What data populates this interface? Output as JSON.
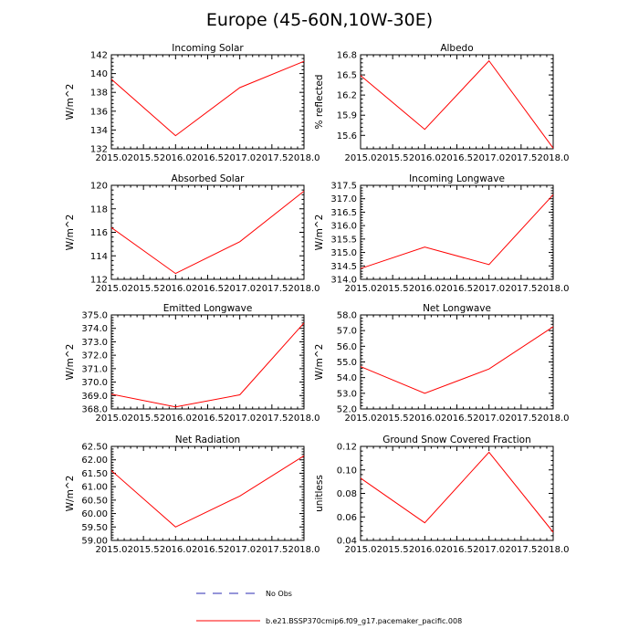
{
  "title": "Europe (45-60N,10W-30E)",
  "colors": {
    "series": "#ff0000",
    "obs": "#2b2bb3",
    "axis": "#000000"
  },
  "legend": [
    {
      "label": "No Obs",
      "style": "dashed",
      "color": "#2b2bb3"
    },
    {
      "label": "b.e21.BSSP370cmip6.f09_g17.pacemaker_pacific.008",
      "style": "solid",
      "color": "#ff0000"
    }
  ],
  "chart_data": [
    {
      "type": "line",
      "title": "Incoming Solar",
      "ylabel": "W/m^2",
      "x": [
        2015,
        2016,
        2017,
        2018
      ],
      "xlim": [
        2015,
        2018
      ],
      "xticks": [
        "2015.0",
        "2015.5",
        "2016.0",
        "2016.5",
        "2017.0",
        "2017.5",
        "2018.0"
      ],
      "ylim": [
        132,
        142
      ],
      "yticks": [
        "132",
        "134",
        "136",
        "138",
        "140",
        "142"
      ],
      "series": [
        {
          "values": [
            139.4,
            133.4,
            138.5,
            141.3
          ]
        }
      ]
    },
    {
      "type": "line",
      "title": "Albedo",
      "ylabel": "% reflected",
      "x": [
        2015,
        2016,
        2017,
        2018
      ],
      "xlim": [
        2015,
        2018
      ],
      "xticks": [
        "2015.0",
        "2015.5",
        "2016.0",
        "2016.5",
        "2017.0",
        "2017.5",
        "2018.0"
      ],
      "ylim": [
        15.4,
        16.8
      ],
      "yticks": [
        "15.6",
        "15.9",
        "16.2",
        "16.5",
        "16.8"
      ],
      "series": [
        {
          "values": [
            16.49,
            15.69,
            16.71,
            15.41
          ]
        }
      ]
    },
    {
      "type": "line",
      "title": "Absorbed Solar",
      "ylabel": "W/m^2",
      "x": [
        2015,
        2016,
        2017,
        2018
      ],
      "xlim": [
        2015,
        2018
      ],
      "xticks": [
        "2015.0",
        "2015.5",
        "2016.0",
        "2016.5",
        "2017.0",
        "2017.5",
        "2018.0"
      ],
      "ylim": [
        112,
        120
      ],
      "yticks": [
        "112",
        "114",
        "116",
        "118",
        "120"
      ],
      "series": [
        {
          "values": [
            116.4,
            112.5,
            115.2,
            119.5
          ]
        }
      ]
    },
    {
      "type": "line",
      "title": "Incoming Longwave",
      "ylabel": "W/m^2",
      "x": [
        2015,
        2016,
        2017,
        2018
      ],
      "xlim": [
        2015,
        2018
      ],
      "xticks": [
        "2015.0",
        "2015.5",
        "2016.0",
        "2016.5",
        "2017.0",
        "2017.5",
        "2018.0"
      ],
      "ylim": [
        314.0,
        317.5
      ],
      "yticks": [
        "314.0",
        "314.5",
        "315.0",
        "315.5",
        "316.0",
        "316.5",
        "317.0",
        "317.5"
      ],
      "series": [
        {
          "values": [
            314.4,
            315.2,
            314.55,
            317.15
          ]
        }
      ]
    },
    {
      "type": "line",
      "title": "Emitted Longwave",
      "ylabel": "W/m^2",
      "x": [
        2015,
        2016,
        2017,
        2018
      ],
      "xlim": [
        2015,
        2018
      ],
      "xticks": [
        "2015.0",
        "2015.5",
        "2016.0",
        "2016.5",
        "2017.0",
        "2017.5",
        "2018.0"
      ],
      "ylim": [
        368.0,
        375.0
      ],
      "yticks": [
        "368.0",
        "369.0",
        "370.0",
        "371.0",
        "372.0",
        "373.0",
        "374.0",
        "375.0"
      ],
      "series": [
        {
          "values": [
            369.1,
            368.15,
            369.05,
            374.4
          ]
        }
      ]
    },
    {
      "type": "line",
      "title": "Net Longwave",
      "ylabel": "W/m^2",
      "x": [
        2015,
        2016,
        2017,
        2018
      ],
      "xlim": [
        2015,
        2018
      ],
      "xticks": [
        "2015.0",
        "2015.5",
        "2016.0",
        "2016.5",
        "2017.0",
        "2017.5",
        "2018.0"
      ],
      "ylim": [
        52.0,
        58.0
      ],
      "yticks": [
        "52.0",
        "53.0",
        "54.0",
        "55.0",
        "56.0",
        "57.0",
        "58.0"
      ],
      "series": [
        {
          "values": [
            54.7,
            53.0,
            54.55,
            57.25
          ]
        }
      ]
    },
    {
      "type": "line",
      "title": "Net Radiation",
      "ylabel": "W/m^2",
      "x": [
        2015,
        2016,
        2017,
        2018
      ],
      "xlim": [
        2015,
        2018
      ],
      "xticks": [
        "2015.0",
        "2015.5",
        "2016.0",
        "2016.5",
        "2017.0",
        "2017.5",
        "2018.0"
      ],
      "ylim": [
        59.0,
        62.5
      ],
      "yticks": [
        "59.00",
        "59.50",
        "60.00",
        "60.50",
        "61.00",
        "61.50",
        "62.00",
        "62.50"
      ],
      "series": [
        {
          "values": [
            61.6,
            59.5,
            60.65,
            62.15
          ]
        }
      ]
    },
    {
      "type": "line",
      "title": "Ground Snow Covered Fraction",
      "ylabel": "unitless",
      "x": [
        2015,
        2016,
        2017,
        2018
      ],
      "xlim": [
        2015,
        2018
      ],
      "xticks": [
        "2015.0",
        "2015.5",
        "2016.0",
        "2016.5",
        "2017.0",
        "2017.5",
        "2018.0"
      ],
      "ylim": [
        0.04,
        0.12
      ],
      "yticks": [
        "0.04",
        "0.06",
        "0.08",
        "0.10",
        "0.12"
      ],
      "series": [
        {
          "values": [
            0.093,
            0.055,
            0.115,
            0.047
          ]
        }
      ]
    }
  ]
}
